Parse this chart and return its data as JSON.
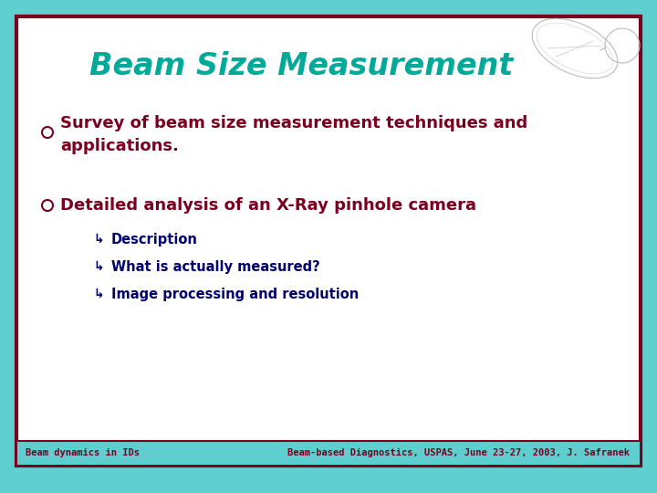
{
  "title": "Beam Size Measurement",
  "title_color": "#00AA99",
  "background_outer": "#5ECECE",
  "background_inner": "#FFFFFF",
  "border_color": "#7B0020",
  "bullet_color": "#7B0020",
  "bullet1_line1": "Survey of beam size measurement techniques and",
  "bullet1_line2": "applications.",
  "bullet2": "Detailed analysis of an X-Ray pinhole camera",
  "subbullets": [
    "Description",
    "What is actually measured?",
    "Image processing and resolution"
  ],
  "subbullet_color": "#000070",
  "footer_left": "Beam dynamics in IDs",
  "footer_right": "Beam-based Diagnostics, USPAS, June 23-27, 2003, J. Safranek",
  "footer_color": "#7B0020",
  "ellipse_color": "#BBBBBB"
}
